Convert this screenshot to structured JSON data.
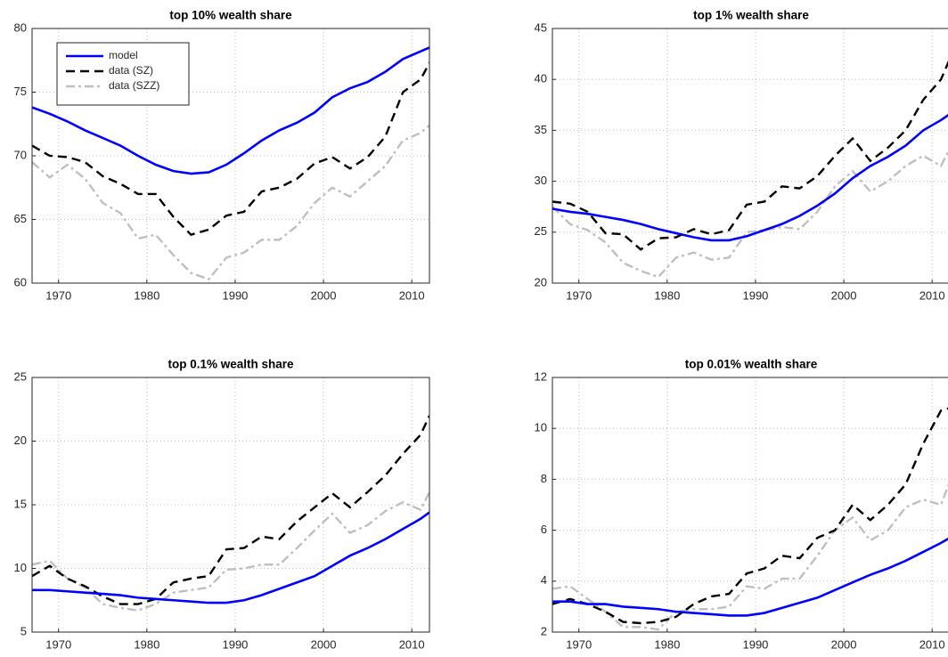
{
  "chart_data": [
    {
      "type": "line",
      "title": "top 10% wealth share",
      "legend": "upper left",
      "grid": true,
      "xlim": [
        1967,
        2012
      ],
      "xticks": [
        1970,
        1980,
        1990,
        2000,
        2010
      ],
      "ylim": [
        60,
        80
      ],
      "yticks": [
        60,
        65,
        70,
        75,
        80
      ],
      "x": [
        1967,
        1969,
        1971,
        1973,
        1975,
        1977,
        1979,
        1981,
        1983,
        1985,
        1987,
        1989,
        1991,
        1993,
        1995,
        1997,
        1999,
        2001,
        2003,
        2005,
        2007,
        2009,
        2011,
        2012
      ],
      "series": [
        {
          "name": "model",
          "color": "#0000ff",
          "linestyle": "solid",
          "values": [
            73.8,
            73.3,
            72.7,
            72.0,
            71.4,
            70.8,
            70.0,
            69.3,
            68.8,
            68.6,
            68.7,
            69.3,
            70.2,
            71.2,
            72.0,
            72.6,
            73.4,
            74.6,
            75.3,
            75.8,
            76.6,
            77.6,
            78.2,
            78.5
          ]
        },
        {
          "name": "data (SZ)",
          "color": "#000000",
          "linestyle": "dashed",
          "values": [
            70.8,
            70.0,
            69.9,
            69.5,
            68.4,
            67.8,
            67.0,
            67.0,
            65.2,
            63.8,
            64.2,
            65.3,
            65.6,
            67.2,
            67.5,
            68.2,
            69.4,
            69.9,
            69.0,
            69.9,
            71.5,
            75.0,
            76.0,
            77.3
          ]
        },
        {
          "name": "data (SZZ)",
          "color": "#bfbfbf",
          "linestyle": "dashdot",
          "values": [
            69.5,
            68.3,
            69.3,
            68.2,
            66.3,
            65.5,
            63.5,
            63.8,
            62.2,
            60.8,
            60.3,
            62.0,
            62.4,
            63.4,
            63.4,
            64.5,
            66.3,
            67.5,
            66.8,
            68.0,
            69.2,
            71.2,
            71.8,
            72.4
          ]
        }
      ]
    },
    {
      "type": "line",
      "title": "top 1% wealth share",
      "grid": true,
      "xlim": [
        1967,
        2012
      ],
      "xticks": [
        1970,
        1980,
        1990,
        2000,
        2010
      ],
      "ylim": [
        20,
        45
      ],
      "yticks": [
        20,
        25,
        30,
        35,
        40,
        45
      ],
      "x": [
        1967,
        1969,
        1971,
        1973,
        1975,
        1977,
        1979,
        1981,
        1983,
        1985,
        1987,
        1989,
        1991,
        1993,
        1995,
        1997,
        1999,
        2001,
        2003,
        2005,
        2007,
        2009,
        2011,
        2012
      ],
      "series": [
        {
          "color": "#0000ff",
          "linestyle": "solid",
          "values": [
            27.3,
            27.0,
            26.8,
            26.5,
            26.2,
            25.8,
            25.3,
            24.9,
            24.5,
            24.2,
            24.2,
            24.6,
            25.2,
            25.8,
            26.6,
            27.6,
            28.8,
            30.3,
            31.5,
            32.4,
            33.5,
            35.0,
            36.0,
            36.6
          ]
        },
        {
          "color": "#000000",
          "linestyle": "dashed",
          "values": [
            28.0,
            27.8,
            27.0,
            24.9,
            24.8,
            23.3,
            24.4,
            24.5,
            25.3,
            24.8,
            25.2,
            27.7,
            28.0,
            29.5,
            29.3,
            30.5,
            32.5,
            34.2,
            32.0,
            33.3,
            35.0,
            38.0,
            40.0,
            42.0
          ]
        },
        {
          "color": "#bfbfbf",
          "linestyle": "dashdot",
          "values": [
            27.5,
            25.8,
            25.2,
            24.0,
            22.0,
            21.2,
            20.6,
            22.5,
            23.0,
            22.3,
            22.5,
            25.0,
            25.2,
            25.5,
            25.3,
            27.0,
            29.5,
            31.0,
            29.0,
            30.0,
            31.5,
            32.5,
            31.5,
            33.2
          ]
        }
      ]
    },
    {
      "type": "line",
      "title": "top 0.1% wealth share",
      "grid": true,
      "xlim": [
        1967,
        2012
      ],
      "xticks": [
        1970,
        1980,
        1990,
        2000,
        2010
      ],
      "ylim": [
        5,
        25
      ],
      "yticks": [
        5,
        10,
        15,
        20,
        25
      ],
      "x": [
        1967,
        1969,
        1971,
        1973,
        1975,
        1977,
        1979,
        1981,
        1983,
        1985,
        1987,
        1989,
        1991,
        1993,
        1995,
        1997,
        1999,
        2001,
        2003,
        2005,
        2007,
        2009,
        2011,
        2012
      ],
      "series": [
        {
          "color": "#0000ff",
          "linestyle": "solid",
          "values": [
            8.3,
            8.3,
            8.2,
            8.1,
            8.0,
            7.9,
            7.7,
            7.6,
            7.5,
            7.4,
            7.3,
            7.3,
            7.5,
            7.9,
            8.4,
            8.9,
            9.4,
            10.2,
            11.0,
            11.6,
            12.3,
            13.1,
            13.9,
            14.4
          ]
        },
        {
          "color": "#000000",
          "linestyle": "dashed",
          "values": [
            9.4,
            10.2,
            9.2,
            8.6,
            7.8,
            7.2,
            7.2,
            7.6,
            8.9,
            9.2,
            9.4,
            11.5,
            11.6,
            12.5,
            12.3,
            13.7,
            14.8,
            15.9,
            14.8,
            16.0,
            17.3,
            19.0,
            20.5,
            22.0
          ]
        },
        {
          "color": "#bfbfbf",
          "linestyle": "dashdot",
          "values": [
            10.3,
            10.6,
            9.2,
            8.5,
            7.2,
            6.9,
            6.7,
            7.2,
            8.1,
            8.3,
            8.5,
            9.9,
            10.0,
            10.3,
            10.3,
            11.6,
            13.0,
            14.3,
            12.8,
            13.4,
            14.5,
            15.2,
            14.6,
            16.0
          ]
        }
      ]
    },
    {
      "type": "line",
      "title": "top 0.01% wealth share",
      "grid": true,
      "xlim": [
        1967,
        2012
      ],
      "xticks": [
        1970,
        1980,
        1990,
        2000,
        2010
      ],
      "ylim": [
        2,
        12
      ],
      "yticks": [
        2,
        4,
        6,
        8,
        10,
        12
      ],
      "x": [
        1967,
        1969,
        1971,
        1973,
        1975,
        1977,
        1979,
        1981,
        1983,
        1985,
        1987,
        1989,
        1991,
        1993,
        1995,
        1997,
        1999,
        2001,
        2003,
        2005,
        2007,
        2009,
        2011,
        2012
      ],
      "series": [
        {
          "color": "#0000ff",
          "linestyle": "solid",
          "values": [
            3.2,
            3.2,
            3.1,
            3.1,
            3.0,
            2.95,
            2.9,
            2.8,
            2.75,
            2.7,
            2.65,
            2.65,
            2.75,
            2.95,
            3.15,
            3.35,
            3.65,
            3.95,
            4.25,
            4.5,
            4.8,
            5.15,
            5.5,
            5.7
          ]
        },
        {
          "color": "#000000",
          "linestyle": "dashed",
          "values": [
            3.1,
            3.3,
            3.1,
            2.8,
            2.4,
            2.35,
            2.4,
            2.6,
            3.1,
            3.4,
            3.5,
            4.3,
            4.5,
            5.0,
            4.9,
            5.7,
            6.0,
            7.0,
            6.4,
            7.0,
            7.8,
            9.4,
            10.7,
            10.8
          ]
        },
        {
          "color": "#bfbfbf",
          "linestyle": "dashdot",
          "values": [
            3.7,
            3.8,
            3.3,
            2.8,
            2.2,
            2.2,
            2.1,
            2.8,
            2.9,
            2.9,
            3.0,
            3.8,
            3.7,
            4.1,
            4.1,
            5.0,
            6.0,
            6.5,
            5.6,
            6.0,
            6.9,
            7.2,
            7.0,
            7.9
          ]
        }
      ]
    }
  ]
}
